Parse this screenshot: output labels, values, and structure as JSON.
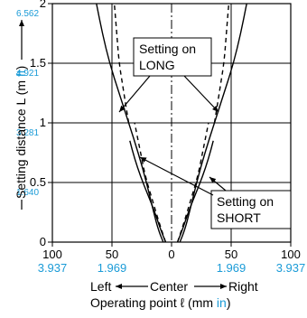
{
  "colors": {
    "axis": "#000000",
    "grid": "#000000",
    "accent_blue": "#1a9bd7",
    "curve": "#000000"
  },
  "chart_data": {
    "type": "line",
    "x_ticks": [
      {
        "value": -100,
        "label": "100",
        "sub": "3.937"
      },
      {
        "value": -50,
        "label": "50",
        "sub": "1.969"
      },
      {
        "value": 0,
        "label": "0",
        "sub": ""
      },
      {
        "value": 50,
        "label": "50",
        "sub": "1.969"
      },
      {
        "value": 100,
        "label": "100",
        "sub": "3.937"
      }
    ],
    "y_ticks": [
      {
        "value": 0,
        "label": "0",
        "sub": ""
      },
      {
        "value": 0.5,
        "label": "0.5",
        "sub": "1.640"
      },
      {
        "value": 1.0,
        "label": "1",
        "sub": "3.281"
      },
      {
        "value": 1.5,
        "label": "1.5",
        "sub": "4.921"
      },
      {
        "value": 2.0,
        "label": "2",
        "sub": "6.562"
      }
    ],
    "xlim": [
      -100,
      100
    ],
    "ylim": [
      0,
      2
    ],
    "grid": true,
    "x_direction": {
      "left": "Left",
      "center": "Center",
      "right": "Right"
    },
    "xlabel_prefix": "Operating point ℓ (mm ",
    "xlabel_unit": "in",
    "xlabel_suffix": ")",
    "ylabel_prefix": "Setting distance L (m ",
    "ylabel_unit": "ft",
    "ylabel_suffix": ")",
    "annotations": {
      "long_line1": "Setting on",
      "long_line2": "LONG",
      "short_line1": "Setting on",
      "short_line2": "SHORT"
    },
    "series": [
      {
        "id": "long-right-solid",
        "style": "solid",
        "points": [
          [
            7,
            0
          ],
          [
            11,
            0.1
          ],
          [
            15,
            0.25
          ],
          [
            21,
            0.5
          ],
          [
            28,
            0.75
          ],
          [
            36,
            1.0
          ],
          [
            44,
            1.25
          ],
          [
            52,
            1.5
          ],
          [
            58,
            1.75
          ],
          [
            63,
            2.0
          ]
        ]
      },
      {
        "id": "long-left-solid",
        "style": "solid",
        "points": [
          [
            -7,
            0
          ],
          [
            -11,
            0.1
          ],
          [
            -15,
            0.25
          ],
          [
            -21,
            0.5
          ],
          [
            -28,
            0.75
          ],
          [
            -36,
            1.0
          ],
          [
            -44,
            1.25
          ],
          [
            -52,
            1.5
          ],
          [
            -58,
            1.75
          ],
          [
            -63,
            2.0
          ]
        ]
      },
      {
        "id": "long-right-dashed",
        "style": "dashed",
        "points": [
          [
            36,
            1.0
          ],
          [
            40,
            1.25
          ],
          [
            44,
            1.5
          ],
          [
            46,
            1.75
          ],
          [
            48,
            2.0
          ]
        ]
      },
      {
        "id": "long-left-dashed",
        "style": "dashed",
        "points": [
          [
            -36,
            1.0
          ],
          [
            -40,
            1.25
          ],
          [
            -44,
            1.5
          ],
          [
            -46,
            1.75
          ],
          [
            -48,
            2.0
          ]
        ]
      },
      {
        "id": "short-right-solid",
        "style": "solid",
        "points": [
          [
            5,
            0
          ],
          [
            9,
            0.1
          ],
          [
            14,
            0.25
          ],
          [
            20,
            0.4
          ],
          [
            26,
            0.55
          ],
          [
            31,
            0.7
          ],
          [
            35,
            0.85
          ]
        ]
      },
      {
        "id": "short-left-solid",
        "style": "solid",
        "points": [
          [
            -5,
            0
          ],
          [
            -9,
            0.1
          ],
          [
            -14,
            0.25
          ],
          [
            -20,
            0.4
          ],
          [
            -26,
            0.55
          ],
          [
            -31,
            0.7
          ],
          [
            -35,
            0.85
          ]
        ]
      },
      {
        "id": "short-right-dashed",
        "style": "dashed",
        "points": [
          [
            5,
            0
          ],
          [
            10,
            0.15
          ],
          [
            16,
            0.35
          ],
          [
            22,
            0.55
          ],
          [
            26,
            0.75
          ],
          [
            29,
            0.9
          ],
          [
            31,
            1.0
          ]
        ]
      },
      {
        "id": "short-left-dashed",
        "style": "dashed",
        "points": [
          [
            -5,
            0
          ],
          [
            -10,
            0.15
          ],
          [
            -16,
            0.35
          ],
          [
            -22,
            0.55
          ],
          [
            -26,
            0.75
          ],
          [
            -29,
            0.9
          ],
          [
            -31,
            1.0
          ]
        ]
      }
    ]
  }
}
